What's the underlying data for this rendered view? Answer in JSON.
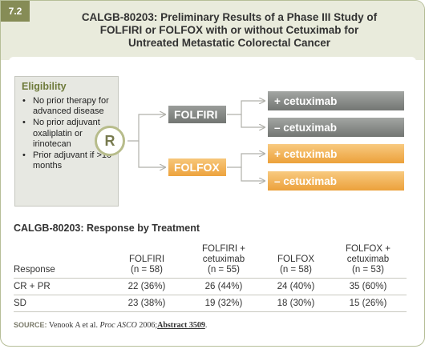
{
  "figure_label": "7.2",
  "title_lines": [
    "CALGB-80203: Preliminary Results of a Phase III Study of",
    "FOLFIRI or FOLFOX with or without Cetuximab for",
    "Untreated Metastatic Colorectal Cancer"
  ],
  "eligibility": {
    "title": "Eligibility",
    "items": [
      "No prior therapy for advanced disease",
      "No prior adjuvant oxaliplatin or irinotecan",
      "Prior adjuvant if >10 months"
    ]
  },
  "randomize_label": "R",
  "arms": [
    {
      "label": "FOLFIRI",
      "subarms": [
        "+ cetuximab",
        "– cetuximab"
      ]
    },
    {
      "label": "FOLFOX",
      "subarms": [
        "+ cetuximab",
        "– cetuximab"
      ]
    }
  ],
  "colors": {
    "folfiri": "#858885",
    "folfox": "#f0ad4e",
    "accent": "#6e7a3a",
    "header_band": "#e9ebdc",
    "figure_label_bg": "#868c56"
  },
  "table": {
    "title": "CALGB-80203: Response by Treatment",
    "headers": [
      [
        "Response"
      ],
      [
        "FOLFIRI",
        "(n = 58)"
      ],
      [
        "FOLFIRI +",
        "cetuximab",
        "(n = 55)"
      ],
      [
        "FOLFOX",
        "(n = 58)"
      ],
      [
        "FOLFOX +",
        "cetuximab",
        "(n = 53)"
      ]
    ],
    "rows": [
      [
        "CR + PR",
        "22 (36%)",
        "26 (44%)",
        "24 (40%)",
        "35 (60%)"
      ],
      [
        "SD",
        "23 (38%)",
        "19 (32%)",
        "18 (30%)",
        "15 (26%)"
      ]
    ]
  },
  "source": {
    "label": "SOURCE:",
    "authors": "Venook A et al.",
    "journal": "Proc ASCO",
    "year": "2006;",
    "abstract": "Abstract 3509",
    "end": "."
  }
}
